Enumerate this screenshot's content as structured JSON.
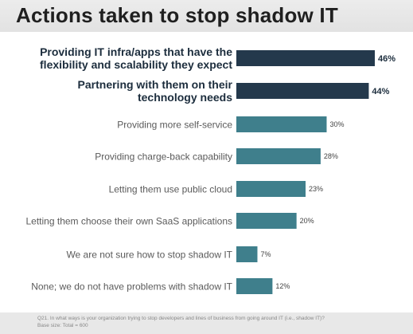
{
  "title": "Actions taken to stop shadow IT",
  "chart_data": {
    "type": "bar",
    "orientation": "horizontal",
    "categories": [
      [
        "Providing IT infra/apps that have the",
        "flexibility and scalability they expect"
      ],
      [
        "Partnering with them on their",
        "technology needs"
      ],
      [
        "Providing more self-service"
      ],
      [
        "Providing charge-back capability"
      ],
      [
        "Letting them use public cloud"
      ],
      [
        "Letting them choose their own SaaS applications"
      ],
      [
        "We are not sure how to stop shadow IT"
      ],
      [
        "None; we do not have problems with shadow IT"
      ]
    ],
    "values": [
      46,
      44,
      30,
      28,
      23,
      20,
      7,
      12
    ],
    "value_labels": [
      "46%",
      "44%",
      "30%",
      "28%",
      "23%",
      "20%",
      "7%",
      "12%"
    ],
    "highlighted": [
      true,
      true,
      false,
      false,
      false,
      false,
      false,
      false
    ],
    "colors": {
      "highlight_bar": "#24394c",
      "normal_bar": "#3f7f8c",
      "highlight_text": "#1c2d3d",
      "normal_text": "#5a5a5a"
    },
    "xlim": [
      0,
      50
    ]
  },
  "footnote": {
    "line1": "Q21. In what ways is your organization trying to stop developers and lines of business from going around IT (i.e., shadow IT)?",
    "line2": "Base size: Total = 600"
  }
}
